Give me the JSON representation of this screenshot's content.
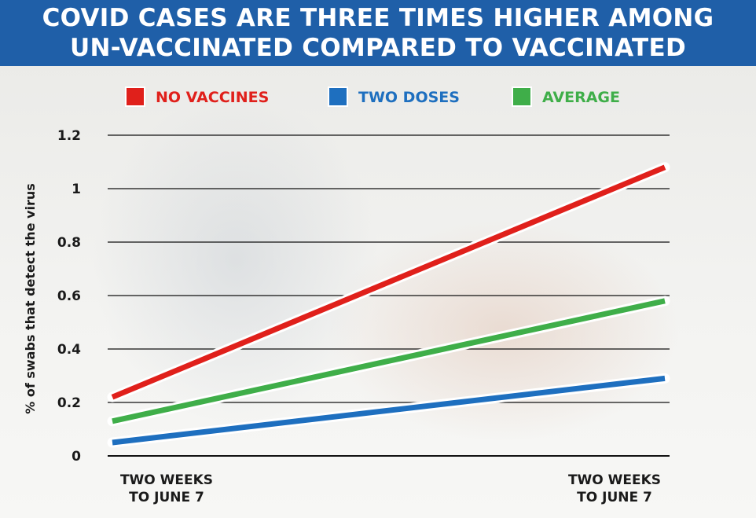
{
  "chart_data": {
    "type": "line",
    "title": "COVID CASES ARE THREE TIMES HIGHER AMONG UN-VACCINATED COMPARED TO VACCINATED",
    "title_lines": [
      "COVID CASES ARE THREE TIMES HIGHER AMONG",
      "UN-VACCINATED COMPARED TO VACCINATED"
    ],
    "ylabel": "% of swabs that detect the virus",
    "xlabel": "",
    "categories": [
      [
        "TWO WEEKS",
        "TO JUNE 7"
      ],
      [
        "TWO WEEKS",
        "TO JUNE 7"
      ]
    ],
    "ylim": [
      0,
      1.2
    ],
    "yticks": [
      {
        "value": 0,
        "label": "0"
      },
      {
        "value": 0.2,
        "label": "0.2"
      },
      {
        "value": 0.4,
        "label": "0.4"
      },
      {
        "value": 0.6,
        "label": "0.6"
      },
      {
        "value": 0.8,
        "label": "0.8"
      },
      {
        "value": 1.0,
        "label": "1"
      },
      {
        "value": 1.2,
        "label": "1.2"
      }
    ],
    "grid": true,
    "legend_position": "top",
    "series": [
      {
        "name": "NO VACCINES",
        "color": "#e0201b",
        "values": [
          0.22,
          1.08
        ]
      },
      {
        "name": "TWO DOSES",
        "color": "#1e6fbf",
        "values": [
          0.05,
          0.29
        ]
      },
      {
        "name": "AVERAGE",
        "color": "#3fae49",
        "values": [
          0.13,
          0.58
        ]
      }
    ]
  },
  "colors": {
    "banner": "#1f5fa8",
    "title_text": "#ffffff",
    "grid": "#111111"
  }
}
